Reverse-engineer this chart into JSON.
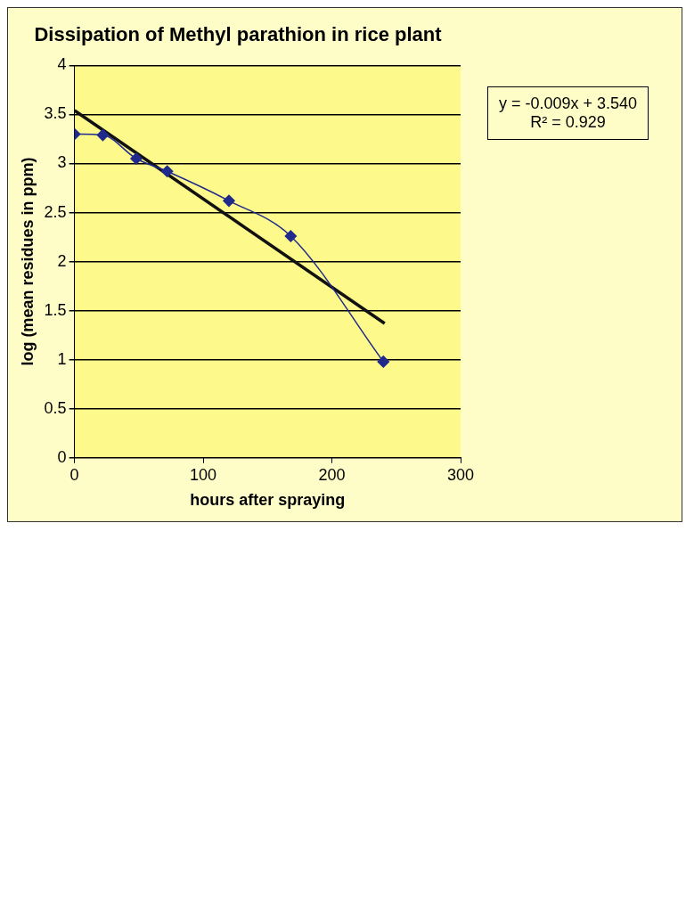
{
  "chart_data": {
    "type": "line",
    "title": "Dissipation of Methyl parathion in rice plant",
    "xlabel": "hours after spraying",
    "ylabel": "log (mean residues in ppm)",
    "annotations": [
      "y = -0.009x + 3.540",
      "R² = 0.929"
    ],
    "series": [
      {
        "color": "#1f2a8c",
        "x": [
          0,
          22,
          48,
          72,
          120,
          168,
          240
        ],
        "values": [
          3.3,
          3.29,
          3.05,
          2.92,
          2.62,
          2.26,
          0.98
        ],
        "marker": "diamond"
      },
      {
        "color": "#111111",
        "x": [
          0,
          241
        ],
        "values": [
          3.54,
          1.37
        ],
        "marker": "none"
      }
    ],
    "xlim": [
      0,
      300
    ],
    "xticks": [
      0,
      100,
      200,
      300
    ],
    "ylim": [
      0,
      4
    ],
    "yticks": [
      0,
      0.5,
      1,
      1.5,
      2,
      2.5,
      3,
      3.5,
      4
    ],
    "grid": "y",
    "legend": false
  }
}
